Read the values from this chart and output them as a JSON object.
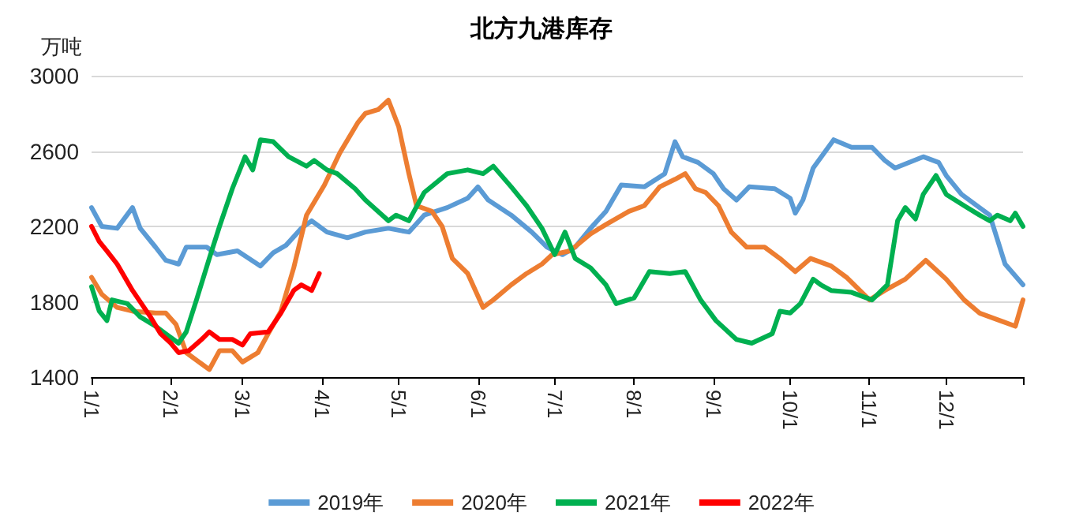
{
  "chart_data": {
    "type": "line",
    "title": "北方九港库存",
    "ylabel": "万吨",
    "xlim": [
      "--01-01",
      "--12-31"
    ],
    "xticks": [
      {
        "value": "--01-01",
        "label": "1/1"
      },
      {
        "value": "--02-01",
        "label": "2/1"
      },
      {
        "value": "--03-01",
        "label": "3/1"
      },
      {
        "value": "--04-01",
        "label": "4/1"
      },
      {
        "value": "--05-01",
        "label": "5/1"
      },
      {
        "value": "--06-01",
        "label": "6/1"
      },
      {
        "value": "--07-01",
        "label": "7/1"
      },
      {
        "value": "--08-01",
        "label": "8/1"
      },
      {
        "value": "--09-01",
        "label": "9/1"
      },
      {
        "value": "--10-01",
        "label": "10/1"
      },
      {
        "value": "--11-01",
        "label": "11/1"
      },
      {
        "value": "--12-01",
        "label": "12/1"
      },
      {
        "value": "--12-31",
        "label": null
      }
    ],
    "ylim": [
      1400,
      3000
    ],
    "yticks": [
      1400,
      1800,
      2200,
      2600,
      3000
    ],
    "grid": "y",
    "legend": "bottom",
    "marker": "none",
    "line_style": "solid",
    "series": [
      {
        "name": "2019年",
        "color": "#5b9bd5",
        "x": [
          "--01-01",
          "--01-05",
          "--01-11",
          "--01-17",
          "--01-20",
          "--01-26",
          "--01-30",
          "--02-04",
          "--02-07",
          "--02-15",
          "--02-19",
          "--02-27",
          "--03-08",
          "--03-13",
          "--03-18",
          "--03-24",
          "--03-28",
          "--04-03",
          "--04-11",
          "--04-18",
          "--04-27",
          "--05-05",
          "--05-11",
          "--05-20",
          "--05-28",
          "--06-01",
          "--06-05",
          "--06-14",
          "--06-22",
          "--06-28",
          "--07-04",
          "--07-09",
          "--07-15",
          "--07-21",
          "--07-27",
          "--08-05",
          "--08-13",
          "--08-17",
          "--08-20",
          "--08-26",
          "--09-01",
          "--09-05",
          "--09-10",
          "--09-15",
          "--09-25",
          "--10-01",
          "--10-03",
          "--10-06",
          "--10-10",
          "--10-18",
          "--10-25",
          "--11-02",
          "--11-07",
          "--11-11",
          "--11-22",
          "--11-28",
          "--12-01",
          "--12-07",
          "--12-14",
          "--12-18",
          "--12-24",
          "--12-31"
        ],
        "values": [
          2300,
          2200,
          2190,
          2300,
          2190,
          2090,
          2020,
          2000,
          2090,
          2090,
          2050,
          2070,
          1990,
          2060,
          2100,
          2190,
          2230,
          2170,
          2140,
          2170,
          2190,
          2170,
          2260,
          2300,
          2350,
          2410,
          2340,
          2260,
          2170,
          2090,
          2050,
          2090,
          2190,
          2280,
          2420,
          2410,
          2480,
          2650,
          2570,
          2540,
          2480,
          2400,
          2340,
          2410,
          2400,
          2350,
          2270,
          2340,
          2510,
          2660,
          2620,
          2620,
          2550,
          2510,
          2570,
          2540,
          2470,
          2370,
          2300,
          2260,
          2000,
          1890
        ]
      },
      {
        "name": "2020年",
        "color": "#ed7d31",
        "x": [
          "--01-01",
          "--01-05",
          "--01-11",
          "--01-17",
          "--01-26",
          "--01-30",
          "--02-03",
          "--02-07",
          "--02-13",
          "--02-16",
          "--02-20",
          "--02-25",
          "--03-01",
          "--03-07",
          "--03-11",
          "--03-16",
          "--03-21",
          "--03-26",
          "--04-02",
          "--04-08",
          "--04-15",
          "--04-18",
          "--04-23",
          "--04-27",
          "--05-01",
          "--05-05",
          "--05-08",
          "--05-14",
          "--05-18",
          "--05-22",
          "--05-28",
          "--06-03",
          "--06-07",
          "--06-14",
          "--06-20",
          "--06-26",
          "--06-30",
          "--07-07",
          "--07-15",
          "--07-21",
          "--07-30",
          "--08-05",
          "--08-11",
          "--08-17",
          "--08-21",
          "--08-25",
          "--08-29",
          "--09-03",
          "--09-08",
          "--09-14",
          "--09-21",
          "--09-27",
          "--10-03",
          "--10-09",
          "--10-17",
          "--10-23",
          "--11-01",
          "--11-07",
          "--11-15",
          "--11-23",
          "--12-01",
          "--12-08",
          "--12-14",
          "--12-22",
          "--12-28",
          "--12-31"
        ],
        "values": [
          1930,
          1840,
          1770,
          1750,
          1740,
          1740,
          1680,
          1530,
          1470,
          1440,
          1540,
          1540,
          1480,
          1530,
          1630,
          1750,
          1980,
          2260,
          2420,
          2590,
          2750,
          2800,
          2820,
          2870,
          2730,
          2480,
          2310,
          2280,
          2200,
          2030,
          1950,
          1770,
          1810,
          1890,
          1950,
          2000,
          2050,
          2070,
          2160,
          2210,
          2280,
          2310,
          2410,
          2450,
          2480,
          2400,
          2380,
          2310,
          2170,
          2090,
          2090,
          2030,
          1960,
          2030,
          1990,
          1930,
          1810,
          1860,
          1920,
          2020,
          1920,
          1810,
          1740,
          1700,
          1670,
          1810
        ]
      },
      {
        "name": "2021年",
        "color": "#00b050",
        "x": [
          "--01-01",
          "--01-04",
          "--01-07",
          "--01-09",
          "--01-15",
          "--01-20",
          "--01-26",
          "--01-30",
          "--02-04",
          "--02-07",
          "--02-11",
          "--02-16",
          "--02-20",
          "--02-25",
          "--03-02",
          "--03-05",
          "--03-08",
          "--03-13",
          "--03-19",
          "--03-26",
          "--03-29",
          "--04-03",
          "--04-07",
          "--04-14",
          "--04-18",
          "--04-27",
          "--04-30",
          "--05-05",
          "--05-11",
          "--05-20",
          "--05-28",
          "--06-03",
          "--06-07",
          "--06-14",
          "--06-20",
          "--06-26",
          "--07-01",
          "--07-05",
          "--07-09",
          "--07-15",
          "--07-21",
          "--07-25",
          "--08-01",
          "--08-07",
          "--08-15",
          "--08-21",
          "--08-27",
          "--09-02",
          "--09-10",
          "--09-16",
          "--09-24",
          "--09-27",
          "--10-01",
          "--10-05",
          "--10-10",
          "--10-13",
          "--10-17",
          "--10-25",
          "--11-02",
          "--11-08",
          "--11-12",
          "--11-15",
          "--11-19",
          "--11-22",
          "--11-27",
          "--12-01",
          "--12-08",
          "--12-14",
          "--12-18",
          "--12-21",
          "--12-26",
          "--12-28",
          "--12-31"
        ],
        "values": [
          1880,
          1750,
          1700,
          1810,
          1790,
          1720,
          1670,
          1630,
          1580,
          1640,
          1810,
          2030,
          2200,
          2400,
          2570,
          2500,
          2660,
          2650,
          2570,
          2520,
          2550,
          2500,
          2480,
          2400,
          2340,
          2230,
          2260,
          2230,
          2380,
          2480,
          2500,
          2480,
          2520,
          2410,
          2310,
          2190,
          2050,
          2170,
          2030,
          1980,
          1890,
          1790,
          1820,
          1960,
          1950,
          1960,
          1810,
          1700,
          1600,
          1580,
          1630,
          1750,
          1740,
          1790,
          1920,
          1890,
          1860,
          1850,
          1810,
          1890,
          2230,
          2300,
          2240,
          2370,
          2470,
          2370,
          2310,
          2260,
          2230,
          2260,
          2230,
          2270,
          2200
        ]
      },
      {
        "name": "2022年",
        "color": "#ff0000",
        "x": [
          "--01-01",
          "--01-04",
          "--01-07",
          "--01-11",
          "--01-17",
          "--01-24",
          "--01-28",
          "--02-01",
          "--02-04",
          "--02-08",
          "--02-13",
          "--02-16",
          "--02-20",
          "--02-25",
          "--03-01",
          "--03-04",
          "--03-11",
          "--03-16",
          "--03-21",
          "--03-24",
          "--03-28",
          "--03-31"
        ],
        "values": [
          2200,
          2120,
          2070,
          2000,
          1860,
          1720,
          1630,
          1580,
          1530,
          1540,
          1600,
          1640,
          1600,
          1600,
          1570,
          1630,
          1640,
          1740,
          1860,
          1890,
          1860,
          1950
        ]
      }
    ]
  }
}
